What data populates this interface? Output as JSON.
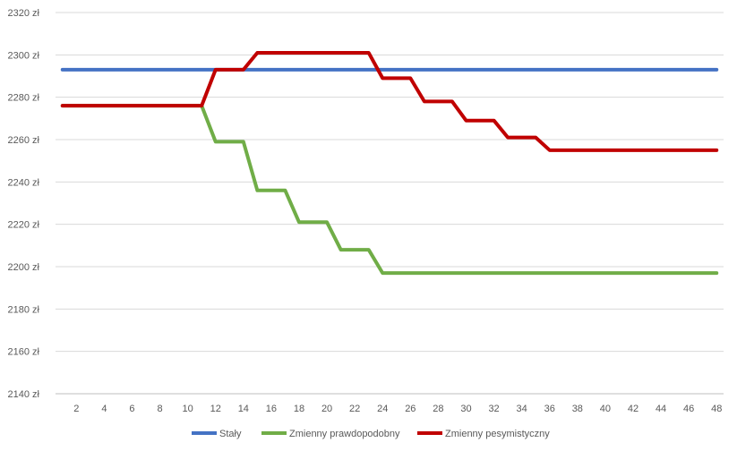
{
  "chart_data": {
    "type": "line",
    "title": "",
    "xlabel": "",
    "ylabel": "",
    "x": [
      1,
      2,
      3,
      4,
      5,
      6,
      7,
      8,
      9,
      10,
      11,
      12,
      13,
      14,
      15,
      16,
      17,
      18,
      19,
      20,
      21,
      22,
      23,
      24,
      25,
      26,
      27,
      28,
      29,
      30,
      31,
      32,
      33,
      34,
      35,
      36,
      37,
      38,
      39,
      40,
      41,
      42,
      43,
      44,
      45,
      46,
      47,
      48
    ],
    "x_tick_labels": [
      "2",
      "4",
      "6",
      "8",
      "10",
      "12",
      "14",
      "16",
      "18",
      "20",
      "22",
      "24",
      "26",
      "28",
      "30",
      "32",
      "34",
      "36",
      "38",
      "40",
      "42",
      "44",
      "46",
      "48"
    ],
    "ylim": [
      2140,
      2320
    ],
    "y_tick_values": [
      2140,
      2160,
      2180,
      2200,
      2220,
      2240,
      2260,
      2280,
      2300,
      2320
    ],
    "y_tick_labels": [
      "2140 zł",
      "2160 zł",
      "2180 zł",
      "2200 zł",
      "2220 zł",
      "2240 zł",
      "2260 zł",
      "2280 zł",
      "2300 zł",
      "2320 zł"
    ],
    "grid": true,
    "legend_position": "bottom",
    "series": [
      {
        "name": "Stały",
        "color": "#4472C4",
        "values": [
          2293,
          2293,
          2293,
          2293,
          2293,
          2293,
          2293,
          2293,
          2293,
          2293,
          2293,
          2293,
          2293,
          2293,
          2293,
          2293,
          2293,
          2293,
          2293,
          2293,
          2293,
          2293,
          2293,
          2293,
          2293,
          2293,
          2293,
          2293,
          2293,
          2293,
          2293,
          2293,
          2293,
          2293,
          2293,
          2293,
          2293,
          2293,
          2293,
          2293,
          2293,
          2293,
          2293,
          2293,
          2293,
          2293,
          2293,
          2293
        ]
      },
      {
        "name": "Zmienny prawdopodobny",
        "color": "#70AD47",
        "values": [
          2276,
          2276,
          2276,
          2276,
          2276,
          2276,
          2276,
          2276,
          2276,
          2276,
          2276,
          2259,
          2259,
          2259,
          2236,
          2236,
          2236,
          2221,
          2221,
          2221,
          2208,
          2208,
          2208,
          2197,
          2197,
          2197,
          2197,
          2197,
          2197,
          2197,
          2197,
          2197,
          2197,
          2197,
          2197,
          2197,
          2197,
          2197,
          2197,
          2197,
          2197,
          2197,
          2197,
          2197,
          2197,
          2197,
          2197,
          2197
        ]
      },
      {
        "name": "Zmienny pesymistyczny",
        "color": "#C00000",
        "values": [
          2276,
          2276,
          2276,
          2276,
          2276,
          2276,
          2276,
          2276,
          2276,
          2276,
          2276,
          2293,
          2293,
          2293,
          2301,
          2301,
          2301,
          2301,
          2301,
          2301,
          2301,
          2301,
          2301,
          2289,
          2289,
          2289,
          2278,
          2278,
          2278,
          2269,
          2269,
          2269,
          2261,
          2261,
          2261,
          2255,
          2255,
          2255,
          2255,
          2255,
          2255,
          2255,
          2255,
          2255,
          2255,
          2255,
          2255,
          2255
        ]
      }
    ]
  }
}
